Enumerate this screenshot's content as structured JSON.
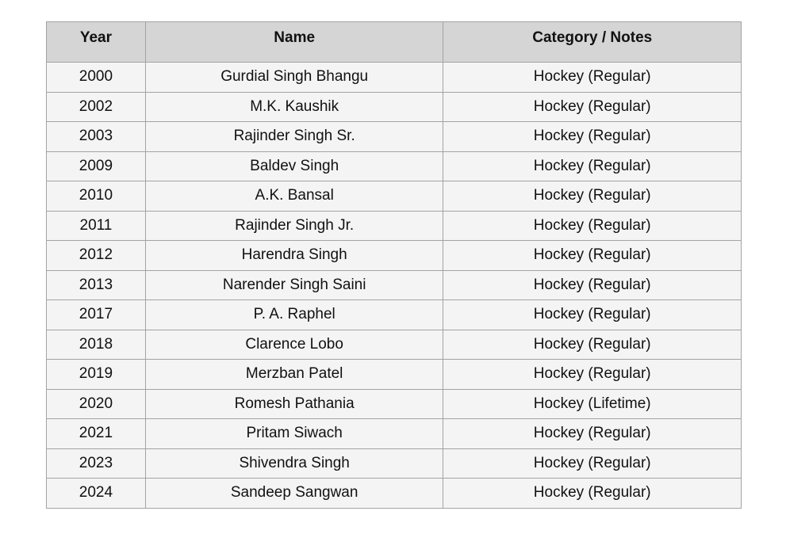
{
  "table": {
    "headers": [
      "Year",
      "Name",
      "Category / Notes"
    ],
    "rows": [
      [
        "2000",
        "Gurdial Singh Bhangu",
        "Hockey (Regular)"
      ],
      [
        "2002",
        "M.K. Kaushik",
        "Hockey (Regular)"
      ],
      [
        "2003",
        "Rajinder Singh Sr.",
        "Hockey (Regular)"
      ],
      [
        "2009",
        "Baldev Singh",
        "Hockey (Regular)"
      ],
      [
        "2010",
        "A.K. Bansal",
        "Hockey (Regular)"
      ],
      [
        "2011",
        "Rajinder Singh Jr.",
        "Hockey (Regular)"
      ],
      [
        "2012",
        "Harendra Singh",
        "Hockey (Regular)"
      ],
      [
        "2013",
        "Narender Singh Saini",
        "Hockey (Regular)"
      ],
      [
        "2017",
        "P. A. Raphel",
        "Hockey (Regular)"
      ],
      [
        "2018",
        "Clarence Lobo",
        "Hockey (Regular)"
      ],
      [
        "2019",
        "Merzban Patel",
        "Hockey (Regular)"
      ],
      [
        "2020",
        "Romesh Pathania",
        "Hockey (Lifetime)"
      ],
      [
        "2021",
        "Pritam Siwach",
        "Hockey (Regular)"
      ],
      [
        "2023",
        "Shivendra Singh",
        "Hockey (Regular)"
      ],
      [
        "2024",
        "Sandeep Sangwan",
        "Hockey (Regular)"
      ]
    ]
  },
  "colors": {
    "header_bg": "#d5d5d5",
    "row_bg": "#f4f4f4",
    "border": "#a3a3a3"
  }
}
